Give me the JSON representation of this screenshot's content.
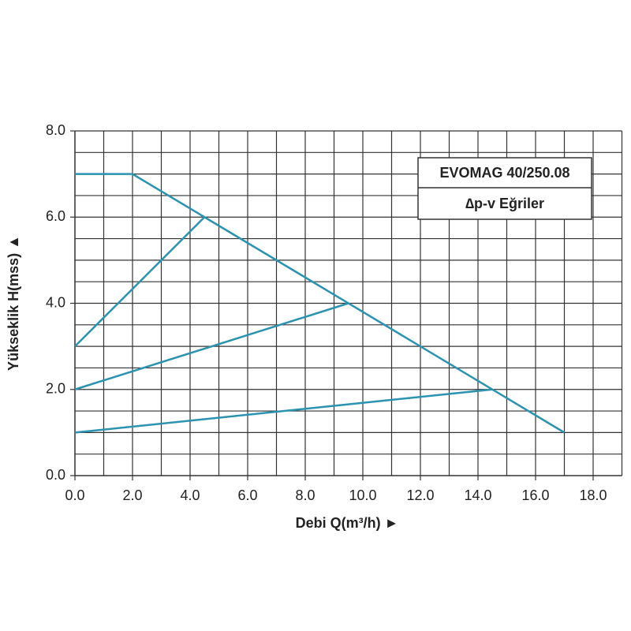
{
  "chart_data": {
    "type": "line",
    "xlabel": "Debi Q(m³/h) ►",
    "ylabel": "Yükseklik H(mss) ▲",
    "annotations": [
      "EVOMAG 40/250.08",
      "∆p-v Eğriler"
    ],
    "xlim": [
      0,
      19
    ],
    "ylim": [
      0,
      8
    ],
    "xticks": [
      {
        "value": 0,
        "label": "0.0"
      },
      {
        "value": 2,
        "label": "2.0"
      },
      {
        "value": 4,
        "label": "4.0"
      },
      {
        "value": 6,
        "label": "6.0"
      },
      {
        "value": 8,
        "label": "8.0"
      },
      {
        "value": 10,
        "label": "10.0"
      },
      {
        "value": 12,
        "label": "12.0"
      },
      {
        "value": 14,
        "label": "14.0"
      },
      {
        "value": 16,
        "label": "16.0"
      },
      {
        "value": 18,
        "label": "18.0"
      }
    ],
    "yticks": [
      {
        "value": 0,
        "label": "0.0"
      },
      {
        "value": 2,
        "label": "2.0"
      },
      {
        "value": 4,
        "label": "4.0"
      },
      {
        "value": 6,
        "label": "6.0"
      },
      {
        "value": 8,
        "label": "8.0"
      }
    ],
    "xgrid": [
      1,
      2,
      3,
      4,
      5,
      6,
      7,
      8,
      9,
      10,
      11,
      12,
      13,
      14,
      15,
      16,
      17,
      18,
      19
    ],
    "ygrid": [
      0.5,
      1,
      1.5,
      2,
      2.5,
      3,
      3.5,
      4,
      4.5,
      5,
      5.5,
      6,
      6.5,
      7,
      7.5,
      8
    ],
    "grid": true,
    "series": [
      {
        "color": "#2b93b0",
        "x": [
          0,
          2,
          17
        ],
        "values": [
          7,
          7,
          1
        ]
      },
      {
        "color": "#2b93b0",
        "x": [
          0,
          4.5
        ],
        "values": [
          3,
          6
        ]
      },
      {
        "color": "#2b93b0",
        "x": [
          0,
          9.5
        ],
        "values": [
          2,
          4
        ]
      },
      {
        "color": "#2b93b0",
        "x": [
          0,
          14.5
        ],
        "values": [
          1,
          2
        ]
      }
    ]
  }
}
